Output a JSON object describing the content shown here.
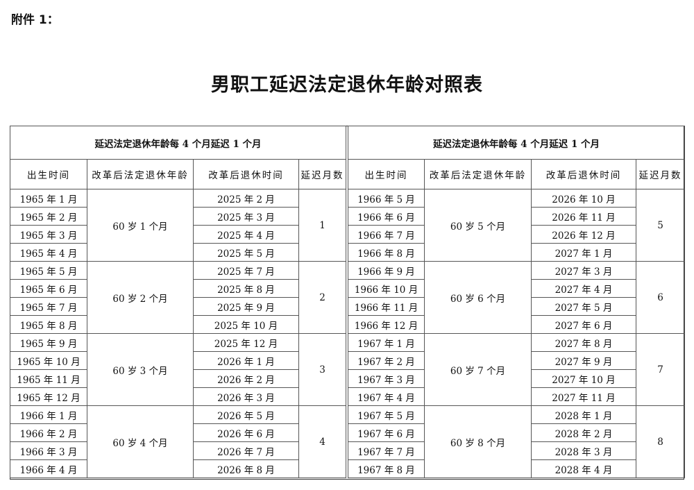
{
  "attachment_label": "附件 1：",
  "title": "男职工延迟法定退休年龄对照表",
  "tables": [
    {
      "caption": "延迟法定退休年龄每 4 个月延迟 1 个月",
      "headers": [
        "出生时间",
        "改革后法定退休年龄",
        "改革后退休时间",
        "延迟月数"
      ],
      "groups": [
        {
          "age": "60 岁 1 个月",
          "delay": "1",
          "rows": [
            [
              "1965 年 1 月",
              "2025 年 2 月"
            ],
            [
              "1965 年 2 月",
              "2025 年 3 月"
            ],
            [
              "1965 年 3 月",
              "2025 年 4 月"
            ],
            [
              "1965 年 4 月",
              "2025 年 5 月"
            ]
          ]
        },
        {
          "age": "60 岁 2 个月",
          "delay": "2",
          "rows": [
            [
              "1965 年 5 月",
              "2025 年 7 月"
            ],
            [
              "1965 年 6 月",
              "2025 年 8 月"
            ],
            [
              "1965 年 7 月",
              "2025 年 9 月"
            ],
            [
              "1965 年 8 月",
              "2025 年 10 月"
            ]
          ]
        },
        {
          "age": "60 岁 3 个月",
          "delay": "3",
          "rows": [
            [
              "1965 年 9 月",
              "2025 年 12 月"
            ],
            [
              "1965 年 10 月",
              "2026 年 1 月"
            ],
            [
              "1965 年 11 月",
              "2026 年 2 月"
            ],
            [
              "1965 年 12 月",
              "2026 年 3 月"
            ]
          ]
        },
        {
          "age": "60 岁 4 个月",
          "delay": "4",
          "rows": [
            [
              "1966 年 1 月",
              "2026 年 5 月"
            ],
            [
              "1966 年 2 月",
              "2026 年 6 月"
            ],
            [
              "1966 年 3 月",
              "2026 年 7 月"
            ],
            [
              "1966 年 4 月",
              "2026 年 8 月"
            ]
          ]
        }
      ]
    },
    {
      "caption": "延迟法定退休年龄每 4 个月延迟 1 个月",
      "headers": [
        "出生时间",
        "改革后法定退休年龄",
        "改革后退休时间",
        "延迟月数"
      ],
      "groups": [
        {
          "age": "60 岁 5 个月",
          "delay": "5",
          "rows": [
            [
              "1966 年 5 月",
              "2026 年 10 月"
            ],
            [
              "1966 年 6 月",
              "2026 年 11 月"
            ],
            [
              "1966 年 7 月",
              "2026 年 12 月"
            ],
            [
              "1966 年 8 月",
              "2027 年 1 月"
            ]
          ]
        },
        {
          "age": "60 岁 6 个月",
          "delay": "6",
          "rows": [
            [
              "1966 年 9 月",
              "2027 年 3 月"
            ],
            [
              "1966 年 10 月",
              "2027 年 4 月"
            ],
            [
              "1966 年 11 月",
              "2027 年 5 月"
            ],
            [
              "1966 年 12 月",
              "2027 年 6 月"
            ]
          ]
        },
        {
          "age": "60 岁 7 个月",
          "delay": "7",
          "rows": [
            [
              "1967 年 1 月",
              "2027 年 8 月"
            ],
            [
              "1967 年 2 月",
              "2027 年 9 月"
            ],
            [
              "1967 年 3 月",
              "2027 年 10 月"
            ],
            [
              "1967 年 4 月",
              "2027 年 11 月"
            ]
          ]
        },
        {
          "age": "60 岁 8 个月",
          "delay": "8",
          "rows": [
            [
              "1967 年 5 月",
              "2028 年 1 月"
            ],
            [
              "1967 年 6 月",
              "2028 年 2 月"
            ],
            [
              "1967 年 7 月",
              "2028 年 3 月"
            ],
            [
              "1967 年 8 月",
              "2028 年 4 月"
            ]
          ]
        }
      ]
    }
  ]
}
